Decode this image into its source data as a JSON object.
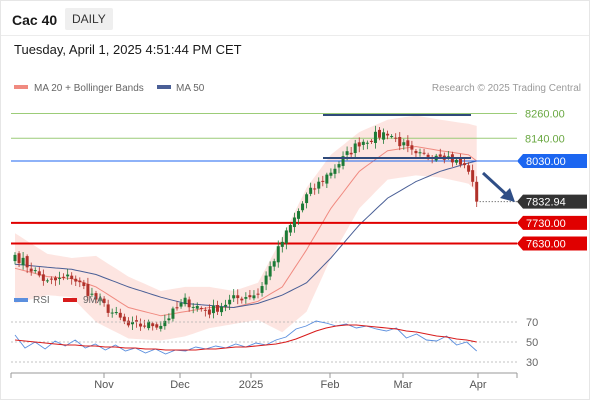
{
  "header": {
    "instrument": "Cac 40",
    "period_button": "DAILY"
  },
  "datetime": "Tuesday, April 1, 2025 4:51:44 PM CET",
  "legend": {
    "ma20": "MA 20 + Bollinger Bands",
    "ma50": "MA 50",
    "rsi": "RSI",
    "rsi_ma": "9MA"
  },
  "watermark": "Research © 2025 Trading Central",
  "colors": {
    "up": "#1c7a36",
    "down": "#b0312a",
    "ma20": "#f08a80",
    "ma50": "#4a5f96",
    "bb_fill": "#fde0dc",
    "support": "#e00000",
    "resistance": "#1c66f0",
    "target_line": "#9ccc78",
    "channel": "#2f4a7a",
    "arrow": "#2f4e86",
    "current_price": "#333333",
    "rsi": "#5b8fde",
    "rsi_ma": "#d81b1b"
  },
  "chart_data": [
    {
      "type": "candlestick",
      "title": "Cac 40",
      "timeframe": "DAILY",
      "x_tick_labels": [
        "Nov",
        "Dec",
        "2025",
        "Feb",
        "Mar",
        "Apr"
      ],
      "ylim": [
        7400,
        8340
      ],
      "price_levels": [
        {
          "value": 8260.0,
          "label": "8260.00",
          "kind": "target"
        },
        {
          "value": 8140.0,
          "label": "8140.00",
          "kind": "target"
        },
        {
          "value": 8030.0,
          "label": "8030.00",
          "kind": "resistance"
        },
        {
          "value": 7832.94,
          "label": "7832.94",
          "kind": "current"
        },
        {
          "value": 7730.0,
          "label": "7730.00",
          "kind": "support"
        },
        {
          "value": 7630.0,
          "label": "7630.00",
          "kind": "support"
        }
      ],
      "anchors": [
        {
          "i": 0,
          "c": 7575,
          "mid": 7510,
          "lo": 7340,
          "up": 7680,
          "ma50": 7530
        },
        {
          "i": 8,
          "c": 7440,
          "mid": 7470,
          "lo": 7380,
          "up": 7580,
          "ma50": 7515
        },
        {
          "i": 14,
          "c": 7470,
          "mid": 7460,
          "lo": 7370,
          "up": 7560,
          "ma50": 7505
        },
        {
          "i": 20,
          "c": 7360,
          "mid": 7420,
          "lo": 7250,
          "up": 7570,
          "ma50": 7480
        },
        {
          "i": 28,
          "c": 7230,
          "mid": 7320,
          "lo": 7170,
          "up": 7470,
          "ma50": 7420
        },
        {
          "i": 36,
          "c": 7240,
          "mid": 7280,
          "lo": 7160,
          "up": 7400,
          "ma50": 7370
        },
        {
          "i": 42,
          "c": 7350,
          "mid": 7300,
          "lo": 7180,
          "up": 7420,
          "ma50": 7340
        },
        {
          "i": 48,
          "c": 7300,
          "mid": 7320,
          "lo": 7220,
          "up": 7420,
          "ma50": 7330
        },
        {
          "i": 54,
          "c": 7360,
          "mid": 7320,
          "lo": 7240,
          "up": 7400,
          "ma50": 7320
        },
        {
          "i": 60,
          "c": 7390,
          "mid": 7350,
          "lo": 7260,
          "up": 7440,
          "ma50": 7340
        },
        {
          "i": 66,
          "c": 7640,
          "mid": 7420,
          "lo": 7200,
          "up": 7660,
          "ma50": 7380
        },
        {
          "i": 72,
          "c": 7860,
          "mid": 7600,
          "lo": 7300,
          "up": 7900,
          "ma50": 7440
        },
        {
          "i": 78,
          "c": 7980,
          "mid": 7800,
          "lo": 7560,
          "up": 8060,
          "ma50": 7560
        },
        {
          "i": 85,
          "c": 8120,
          "mid": 7980,
          "lo": 7800,
          "up": 8170,
          "ma50": 7720
        },
        {
          "i": 92,
          "c": 8170,
          "mid": 8080,
          "lo": 7940,
          "up": 8230,
          "ma50": 7850
        },
        {
          "i": 99,
          "c": 8050,
          "mid": 8100,
          "lo": 7960,
          "up": 8250,
          "ma50": 7930
        },
        {
          "i": 105,
          "c": 8070,
          "mid": 8080,
          "lo": 7950,
          "up": 8230,
          "ma50": 7980
        },
        {
          "i": 112,
          "c": 7990,
          "mid": 8060,
          "lo": 7920,
          "up": 8210,
          "ma50": 8020
        },
        {
          "i": 114,
          "c": 7833,
          "mid": 8030,
          "lo": 7880,
          "up": 8200,
          "ma50": 8030
        }
      ]
    },
    {
      "type": "line",
      "title": "RSI",
      "ylim": [
        25,
        78
      ],
      "y_ticks": [
        70,
        50,
        30
      ],
      "series": [
        {
          "name": "RSI",
          "values": [
            57,
            44,
            50,
            43,
            51,
            46,
            52,
            44,
            48,
            42,
            47,
            41,
            44,
            39,
            43,
            38,
            42,
            41,
            45,
            43,
            46,
            44,
            48,
            45,
            49,
            47,
            52,
            55,
            63,
            66,
            71,
            69,
            66,
            68,
            64,
            66,
            63,
            61,
            64,
            54,
            58,
            52,
            51,
            56,
            47,
            50,
            41
          ]
        },
        {
          "name": "9MA",
          "values": [
            52,
            51,
            50,
            49,
            48,
            47,
            47,
            46,
            46,
            45,
            45,
            44,
            44,
            43,
            43,
            42,
            42,
            42,
            42,
            43,
            43,
            44,
            45,
            45,
            46,
            47,
            48,
            50,
            53,
            57,
            61,
            64,
            66,
            67,
            67,
            66,
            65,
            64,
            63,
            61,
            60,
            58,
            56,
            55,
            53,
            52,
            50
          ]
        }
      ]
    }
  ]
}
